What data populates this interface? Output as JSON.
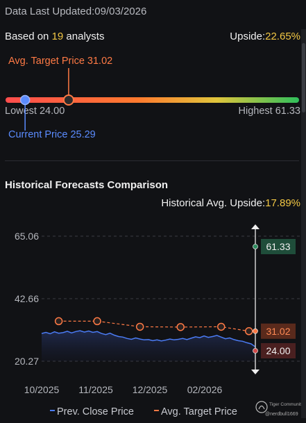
{
  "header": {
    "updated_label": "Data Last Updated:",
    "updated_date": "09/03/2026",
    "based_prefix": "Based on ",
    "analyst_count": "19",
    "based_suffix": " analysts",
    "upside_label": "Upside:",
    "upside_value": "22.65%"
  },
  "range": {
    "avg_target_label": "Avg. Target Price 31.02",
    "current_label": "Current Price 25.29",
    "lowest_label": "Lowest 24.00",
    "highest_label": "Highest 61.33",
    "lowest": 24.0,
    "highest": 61.33,
    "current": 25.29,
    "avg_target": 31.02,
    "colors": {
      "current": "#5b8cff",
      "avg": "#ff7a45"
    }
  },
  "history": {
    "title": "Historical Forecasts Comparison",
    "upside_label": "Historical Avg. Upside:",
    "upside_value": "17.89%"
  },
  "chart_data": {
    "type": "line",
    "ylim": [
      20.27,
      65.06
    ],
    "yticks": [
      "65.06",
      "42.66",
      "20.27"
    ],
    "xticks": [
      "10/2025",
      "11/2025",
      "12/2025",
      "02/2026"
    ],
    "series": [
      {
        "name": "Prev. Close Price",
        "color": "#4b7cf5",
        "x": [
          0,
          2,
          4,
          6,
          8,
          10,
          12,
          14,
          16,
          18,
          20,
          22,
          24,
          26,
          28,
          30,
          32,
          34,
          36,
          38,
          40,
          42,
          44,
          46,
          48,
          50,
          52,
          54,
          56,
          58,
          60,
          62,
          64,
          66,
          68,
          70,
          72,
          74,
          76,
          78,
          80,
          82,
          84,
          86,
          88,
          90,
          92,
          94,
          96,
          98,
          100
        ],
        "values": [
          30.2,
          30.6,
          30.1,
          30.8,
          30.3,
          30.5,
          31.0,
          30.4,
          30.9,
          31.2,
          30.7,
          31.1,
          30.6,
          30.9,
          30.2,
          29.8,
          30.3,
          29.6,
          29.1,
          28.9,
          28.4,
          28.1,
          28.6,
          28.2,
          27.9,
          28.0,
          27.6,
          27.9,
          27.5,
          27.8,
          28.2,
          27.9,
          28.1,
          28.4,
          28.0,
          28.5,
          29.0,
          28.7,
          29.3,
          28.8,
          29.1,
          29.5,
          28.9,
          28.3,
          28.6,
          28.0,
          27.6,
          27.4,
          26.9,
          26.5,
          25.4
        ]
      },
      {
        "name": "Avg. Target Price",
        "color": "#ff7a45",
        "x": [
          8,
          26,
          46,
          65,
          84,
          97
        ],
        "values": [
          34.6,
          34.6,
          32.6,
          32.5,
          32.6,
          31.02
        ]
      }
    ],
    "markers": [
      {
        "label": "61.33",
        "value": 61.33,
        "color": "#1f4d3a",
        "dot": "#2e8c5f"
      },
      {
        "label": "31.02",
        "value": 31.02,
        "color": "#5a2a1c",
        "dot": "#ff7a45"
      },
      {
        "label": "24.00",
        "value": 24.0,
        "color": "#4a2020",
        "dot": "#d24b4b"
      }
    ],
    "legend": [
      {
        "label": "Prev. Close Price",
        "color": "#4b7cf5"
      },
      {
        "label": "Avg. Target Price",
        "color": "#ff7a45"
      }
    ]
  },
  "watermark": {
    "line1": "Tiger Community",
    "line2": "@nerdbull1669"
  }
}
